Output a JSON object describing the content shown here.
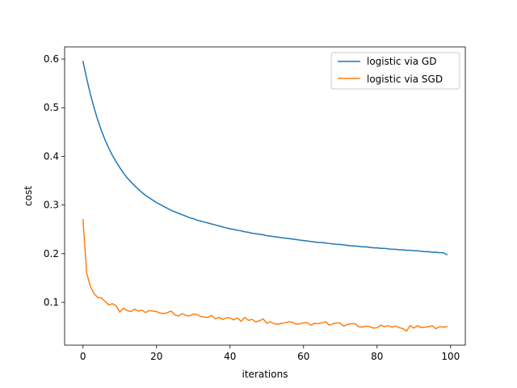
{
  "chart_data": {
    "type": "line",
    "title": "",
    "xlabel": "iterations",
    "ylabel": "cost",
    "xlim": [
      -5,
      104
    ],
    "ylim": [
      0.012,
      0.625
    ],
    "xticks": [
      0,
      20,
      40,
      60,
      80,
      100
    ],
    "yticks": [
      0.1,
      0.2,
      0.3,
      0.4,
      0.5,
      0.6
    ],
    "xtick_labels": [
      "0",
      "20",
      "40",
      "60",
      "80",
      "100"
    ],
    "ytick_labels": [
      "0.1",
      "0.2",
      "0.3",
      "0.4",
      "0.5",
      "0.6"
    ],
    "grid": false,
    "legend": "top-right",
    "series": [
      {
        "name": "logistic via GD",
        "color": "#1f77b4",
        "x": [
          0,
          1,
          2,
          3,
          4,
          5,
          6,
          7,
          8,
          9,
          10,
          11,
          12,
          13,
          14,
          15,
          16,
          17,
          18,
          19,
          20,
          21,
          22,
          23,
          24,
          25,
          26,
          27,
          28,
          29,
          30,
          31,
          32,
          33,
          34,
          35,
          36,
          37,
          38,
          39,
          40,
          41,
          42,
          43,
          44,
          45,
          46,
          47,
          48,
          49,
          50,
          51,
          52,
          53,
          54,
          55,
          56,
          57,
          58,
          59,
          60,
          61,
          62,
          63,
          64,
          65,
          66,
          67,
          68,
          69,
          70,
          71,
          72,
          73,
          74,
          75,
          76,
          77,
          78,
          79,
          80,
          81,
          82,
          83,
          84,
          85,
          86,
          87,
          88,
          89,
          90,
          91,
          92,
          93,
          94,
          95,
          96,
          97,
          98,
          99
        ],
        "y": [
          0.595,
          0.56,
          0.528,
          0.5,
          0.475,
          0.453,
          0.434,
          0.417,
          0.402,
          0.389,
          0.377,
          0.366,
          0.356,
          0.348,
          0.34,
          0.333,
          0.326,
          0.32,
          0.315,
          0.31,
          0.305,
          0.301,
          0.297,
          0.293,
          0.289,
          0.286,
          0.283,
          0.28,
          0.277,
          0.274,
          0.272,
          0.269,
          0.267,
          0.265,
          0.263,
          0.261,
          0.259,
          0.257,
          0.255,
          0.253,
          0.251,
          0.25,
          0.248,
          0.247,
          0.245,
          0.244,
          0.242,
          0.241,
          0.24,
          0.239,
          0.237,
          0.236,
          0.235,
          0.234,
          0.233,
          0.232,
          0.231,
          0.23,
          0.229,
          0.228,
          0.227,
          0.226,
          0.225,
          0.224,
          0.223,
          0.223,
          0.222,
          0.221,
          0.22,
          0.219,
          0.219,
          0.218,
          0.217,
          0.216,
          0.216,
          0.215,
          0.214,
          0.214,
          0.213,
          0.212,
          0.212,
          0.211,
          0.211,
          0.21,
          0.209,
          0.209,
          0.208,
          0.208,
          0.207,
          0.207,
          0.206,
          0.206,
          0.205,
          0.204,
          0.204,
          0.203,
          0.203,
          0.202,
          0.202,
          0.198
        ]
      },
      {
        "name": "logistic via SGD",
        "color": "#ff7f0e",
        "x": [
          0,
          1,
          2,
          3,
          4,
          5,
          6,
          7,
          8,
          9,
          10,
          11,
          12,
          13,
          14,
          15,
          16,
          17,
          18,
          19,
          20,
          21,
          22,
          23,
          24,
          25,
          26,
          27,
          28,
          29,
          30,
          31,
          32,
          33,
          34,
          35,
          36,
          37,
          38,
          39,
          40,
          41,
          42,
          43,
          44,
          45,
          46,
          47,
          48,
          49,
          50,
          51,
          52,
          53,
          54,
          55,
          56,
          57,
          58,
          59,
          60,
          61,
          62,
          63,
          64,
          65,
          66,
          67,
          68,
          69,
          70,
          71,
          72,
          73,
          74,
          75,
          76,
          77,
          78,
          79,
          80,
          81,
          82,
          83,
          84,
          85,
          86,
          87,
          88,
          89,
          90,
          91,
          92,
          93,
          94,
          95,
          96,
          97,
          98,
          99
        ],
        "y": [
          0.27,
          0.16,
          0.133,
          0.118,
          0.11,
          0.109,
          0.102,
          0.095,
          0.097,
          0.093,
          0.08,
          0.088,
          0.083,
          0.081,
          0.086,
          0.082,
          0.084,
          0.079,
          0.083,
          0.082,
          0.081,
          0.078,
          0.077,
          0.079,
          0.082,
          0.074,
          0.072,
          0.077,
          0.073,
          0.072,
          0.076,
          0.075,
          0.071,
          0.07,
          0.069,
          0.073,
          0.066,
          0.069,
          0.065,
          0.068,
          0.068,
          0.064,
          0.068,
          0.061,
          0.069,
          0.063,
          0.065,
          0.06,
          0.062,
          0.066,
          0.057,
          0.06,
          0.056,
          0.055,
          0.057,
          0.058,
          0.06,
          0.059,
          0.055,
          0.056,
          0.058,
          0.058,
          0.053,
          0.057,
          0.056,
          0.058,
          0.06,
          0.053,
          0.056,
          0.058,
          0.057,
          0.051,
          0.055,
          0.056,
          0.056,
          0.05,
          0.049,
          0.051,
          0.05,
          0.047,
          0.048,
          0.053,
          0.05,
          0.052,
          0.049,
          0.051,
          0.048,
          0.046,
          0.041,
          0.052,
          0.047,
          0.052,
          0.048,
          0.049,
          0.05,
          0.052,
          0.046,
          0.05,
          0.049,
          0.05
        ]
      }
    ]
  }
}
